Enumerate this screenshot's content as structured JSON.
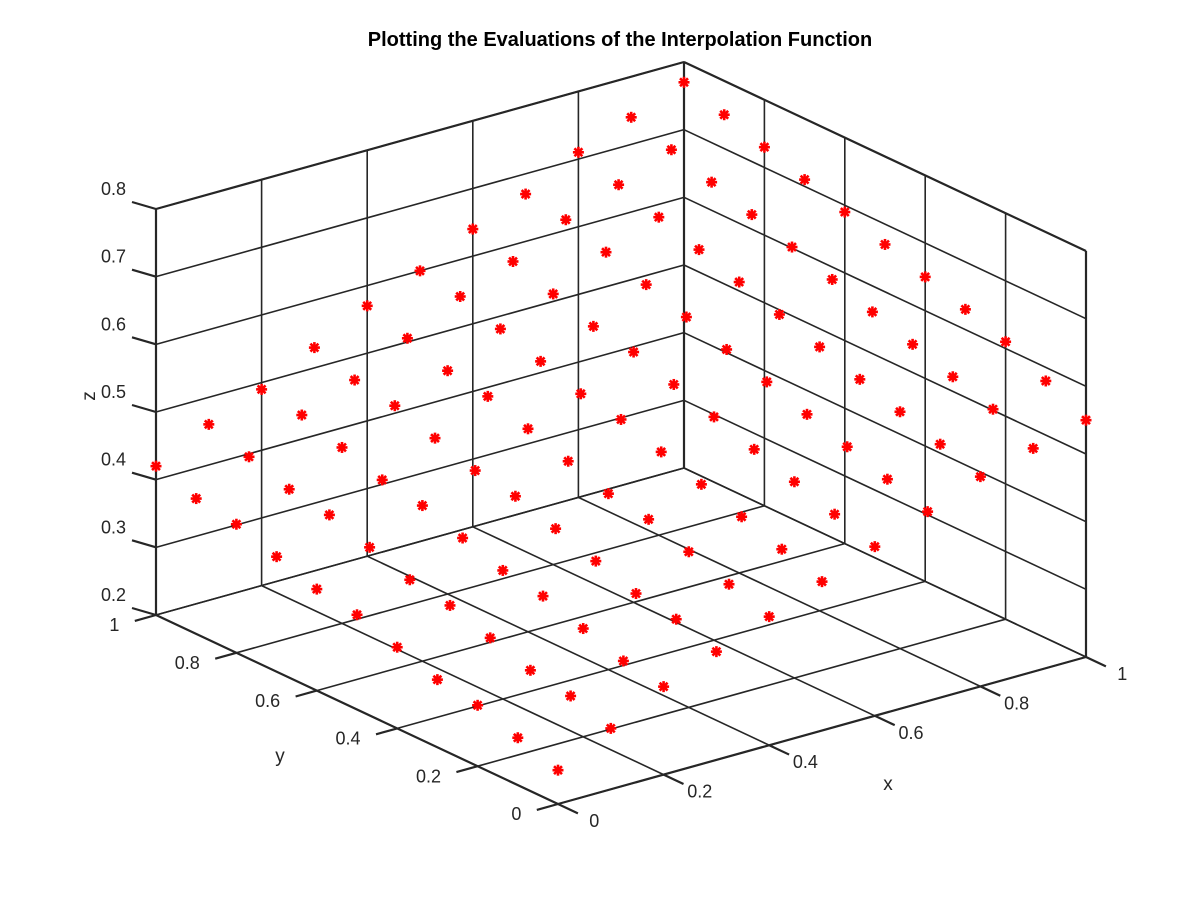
{
  "chart_data": {
    "type": "scatter",
    "title": "Plotting the Evaluations of the Interpolation Function",
    "xlabel": "x",
    "ylabel": "y",
    "zlabel": "z",
    "xlim": [
      0,
      1
    ],
    "ylim": [
      0,
      1
    ],
    "zlim": [
      0.2,
      0.8
    ],
    "x_ticks": [
      "0",
      "0.2",
      "0.4",
      "0.6",
      "0.8",
      "1"
    ],
    "y_ticks": [
      "0",
      "0.2",
      "0.4",
      "0.6",
      "0.8",
      "1"
    ],
    "z_ticks": [
      "0.2",
      "0.3",
      "0.4",
      "0.5",
      "0.6",
      "0.7",
      "0.8"
    ],
    "grid": true,
    "marker": "*",
    "marker_color": "#ff0000",
    "series": [
      {
        "points": [
          [
            0.0,
            0.0,
            0.25
          ],
          [
            0.1,
            0.0,
            0.29
          ],
          [
            0.2,
            0.0,
            0.33
          ],
          [
            0.3,
            0.0,
            0.36
          ],
          [
            0.4,
            0.0,
            0.39
          ],
          [
            0.5,
            0.0,
            0.42
          ],
          [
            0.6,
            0.0,
            0.45
          ],
          [
            0.7,
            0.0,
            0.48
          ],
          [
            0.8,
            0.0,
            0.51
          ],
          [
            0.9,
            0.0,
            0.53
          ],
          [
            1.0,
            0.0,
            0.55
          ],
          [
            0.0,
            0.1,
            0.27
          ],
          [
            0.1,
            0.1,
            0.31
          ],
          [
            0.2,
            0.1,
            0.34
          ],
          [
            0.3,
            0.1,
            0.38
          ],
          [
            0.4,
            0.1,
            0.41
          ],
          [
            0.5,
            0.1,
            0.44
          ],
          [
            0.6,
            0.1,
            0.47
          ],
          [
            0.7,
            0.1,
            0.5
          ],
          [
            0.8,
            0.1,
            0.53
          ],
          [
            0.9,
            0.1,
            0.56
          ],
          [
            1.0,
            0.1,
            0.58
          ],
          [
            0.0,
            0.2,
            0.29
          ],
          [
            0.1,
            0.2,
            0.32
          ],
          [
            0.2,
            0.2,
            0.36
          ],
          [
            0.3,
            0.2,
            0.39
          ],
          [
            0.4,
            0.2,
            0.43
          ],
          [
            0.5,
            0.2,
            0.46
          ],
          [
            0.6,
            0.2,
            0.49
          ],
          [
            0.7,
            0.2,
            0.52
          ],
          [
            0.8,
            0.2,
            0.55
          ],
          [
            0.9,
            0.2,
            0.58
          ],
          [
            1.0,
            0.2,
            0.61
          ],
          [
            0.0,
            0.3,
            0.3
          ],
          [
            0.1,
            0.3,
            0.34
          ],
          [
            0.2,
            0.3,
            0.38
          ],
          [
            0.3,
            0.3,
            0.41
          ],
          [
            0.4,
            0.3,
            0.45
          ],
          [
            0.5,
            0.3,
            0.48
          ],
          [
            0.6,
            0.3,
            0.51
          ],
          [
            0.7,
            0.3,
            0.54
          ],
          [
            0.8,
            0.3,
            0.57
          ],
          [
            0.9,
            0.3,
            0.6
          ],
          [
            1.0,
            0.3,
            0.63
          ],
          [
            0.0,
            0.4,
            0.32
          ],
          [
            0.1,
            0.4,
            0.36
          ],
          [
            0.2,
            0.4,
            0.39
          ],
          [
            0.3,
            0.4,
            0.43
          ],
          [
            0.4,
            0.4,
            0.46
          ],
          [
            0.5,
            0.4,
            0.5
          ],
          [
            0.6,
            0.4,
            0.53
          ],
          [
            0.7,
            0.4,
            0.56
          ],
          [
            0.8,
            0.4,
            0.59
          ],
          [
            0.9,
            0.4,
            0.62
          ],
          [
            1.0,
            0.4,
            0.65
          ],
          [
            0.0,
            0.5,
            0.34
          ],
          [
            0.1,
            0.5,
            0.37
          ],
          [
            0.2,
            0.5,
            0.41
          ],
          [
            0.3,
            0.5,
            0.45
          ],
          [
            0.4,
            0.5,
            0.48
          ],
          [
            0.5,
            0.5,
            0.52
          ],
          [
            0.6,
            0.5,
            0.55
          ],
          [
            0.7,
            0.5,
            0.58
          ],
          [
            0.8,
            0.5,
            0.61
          ],
          [
            0.9,
            0.5,
            0.64
          ],
          [
            1.0,
            0.5,
            0.67
          ],
          [
            0.0,
            0.6,
            0.35
          ],
          [
            0.1,
            0.6,
            0.39
          ],
          [
            0.2,
            0.6,
            0.43
          ],
          [
            0.3,
            0.6,
            0.46
          ],
          [
            0.4,
            0.6,
            0.5
          ],
          [
            0.5,
            0.6,
            0.53
          ],
          [
            0.6,
            0.6,
            0.57
          ],
          [
            0.7,
            0.6,
            0.6
          ],
          [
            0.8,
            0.6,
            0.63
          ],
          [
            0.9,
            0.6,
            0.66
          ],
          [
            1.0,
            0.6,
            0.69
          ],
          [
            0.0,
            0.7,
            0.37
          ],
          [
            0.1,
            0.7,
            0.41
          ],
          [
            0.2,
            0.7,
            0.44
          ],
          [
            0.3,
            0.7,
            0.48
          ],
          [
            0.4,
            0.7,
            0.52
          ],
          [
            0.5,
            0.7,
            0.55
          ],
          [
            0.6,
            0.7,
            0.58
          ],
          [
            0.7,
            0.7,
            0.62
          ],
          [
            0.8,
            0.7,
            0.65
          ],
          [
            0.9,
            0.7,
            0.68
          ],
          [
            1.0,
            0.7,
            0.71
          ],
          [
            0.0,
            0.8,
            0.39
          ],
          [
            0.1,
            0.8,
            0.42
          ],
          [
            0.2,
            0.8,
            0.46
          ],
          [
            0.3,
            0.8,
            0.5
          ],
          [
            0.4,
            0.8,
            0.53
          ],
          [
            0.5,
            0.8,
            0.57
          ],
          [
            0.6,
            0.8,
            0.6
          ],
          [
            0.7,
            0.8,
            0.64
          ],
          [
            0.8,
            0.8,
            0.67
          ],
          [
            0.9,
            0.8,
            0.7
          ],
          [
            1.0,
            0.8,
            0.73
          ],
          [
            0.0,
            0.9,
            0.4
          ],
          [
            0.1,
            0.9,
            0.44
          ],
          [
            0.2,
            0.9,
            0.48
          ],
          [
            0.3,
            0.9,
            0.51
          ],
          [
            0.4,
            0.9,
            0.55
          ],
          [
            0.5,
            0.9,
            0.59
          ],
          [
            0.6,
            0.9,
            0.62
          ],
          [
            0.7,
            0.9,
            0.66
          ],
          [
            0.8,
            0.9,
            0.69
          ],
          [
            0.9,
            0.9,
            0.72
          ],
          [
            1.0,
            0.9,
            0.75
          ],
          [
            0.0,
            1.0,
            0.42
          ],
          [
            0.1,
            1.0,
            0.46
          ],
          [
            0.2,
            1.0,
            0.49
          ],
          [
            0.3,
            1.0,
            0.53
          ],
          [
            0.4,
            1.0,
            0.57
          ],
          [
            0.5,
            1.0,
            0.6
          ],
          [
            0.6,
            1.0,
            0.64
          ],
          [
            0.7,
            1.0,
            0.67
          ],
          [
            0.8,
            1.0,
            0.71
          ],
          [
            0.9,
            1.0,
            0.74
          ],
          [
            1.0,
            1.0,
            0.77
          ]
        ]
      }
    ]
  }
}
